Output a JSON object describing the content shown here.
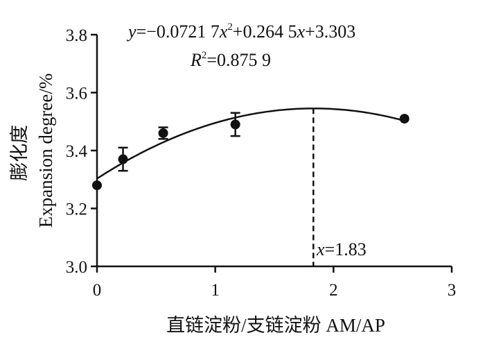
{
  "chart_data": {
    "type": "scatter",
    "xlabel": "直链淀粉/支链淀粉  AM/AP",
    "ylabel_cn": "膨化度",
    "ylabel_en": "Expansion degree/%",
    "xlim": [
      0,
      3
    ],
    "ylim": [
      3.0,
      3.8
    ],
    "x_ticks": [
      0,
      1,
      2,
      3
    ],
    "y_ticks": [
      3.0,
      3.2,
      3.4,
      3.6,
      3.8
    ],
    "points": [
      {
        "x": 0.0,
        "y": 3.28,
        "err": 0.0
      },
      {
        "x": 0.22,
        "y": 3.37,
        "err": 0.04
      },
      {
        "x": 0.56,
        "y": 3.46,
        "err": 0.02
      },
      {
        "x": 1.17,
        "y": 3.49,
        "err": 0.04
      },
      {
        "x": 2.6,
        "y": 3.51,
        "err": 0.0
      }
    ],
    "fit": {
      "a": -0.07217,
      "b": 0.2645,
      "c": 3.303
    },
    "equation_text": {
      "y": "y",
      "eq1": "=−0.0721 7",
      "x1": "x",
      "sup": "2",
      "eq2": "+0.264 5",
      "x2": "x",
      "eq3": "+3.303"
    },
    "r2_text": {
      "r": "R",
      "sup": "2",
      "val": "=0.875 9"
    },
    "vline": {
      "x": 1.83,
      "label_var": "x",
      "label_val": "=1.83"
    },
    "grid": false,
    "legend": "none"
  }
}
